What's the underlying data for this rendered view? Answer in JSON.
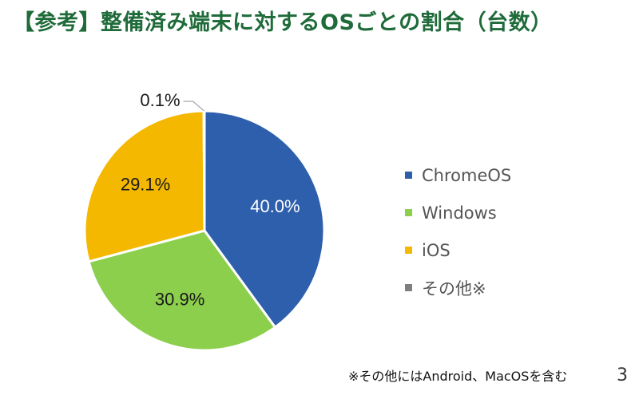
{
  "title": "【参考】整備済み端末に対するOSごとの割合（台数）",
  "chart_data": {
    "type": "pie",
    "title": "【参考】整備済み端末に対するOSごとの割合（台数）",
    "unit": "%",
    "legend_position": "right",
    "slices": [
      {
        "label": "ChromeOS",
        "value": 40.0,
        "display": "40.0%",
        "color": "#2e5fac",
        "label_color": "#ffffff"
      },
      {
        "label": "Windows",
        "value": 30.9,
        "display": "30.9%",
        "color": "#8ccf4d",
        "label_color": "#1a1a1a"
      },
      {
        "label": "iOS",
        "value": 29.1,
        "display": "29.1%",
        "color": "#f5b800",
        "label_color": "#1a1a1a"
      },
      {
        "label": "その他※",
        "value": 0.1,
        "display": "0.1%",
        "color": "#7f7f7f",
        "label_color": "#1a1a1a"
      }
    ]
  },
  "footnote": "※その他にはAndroid、MacOSを含む",
  "page_number": "3"
}
